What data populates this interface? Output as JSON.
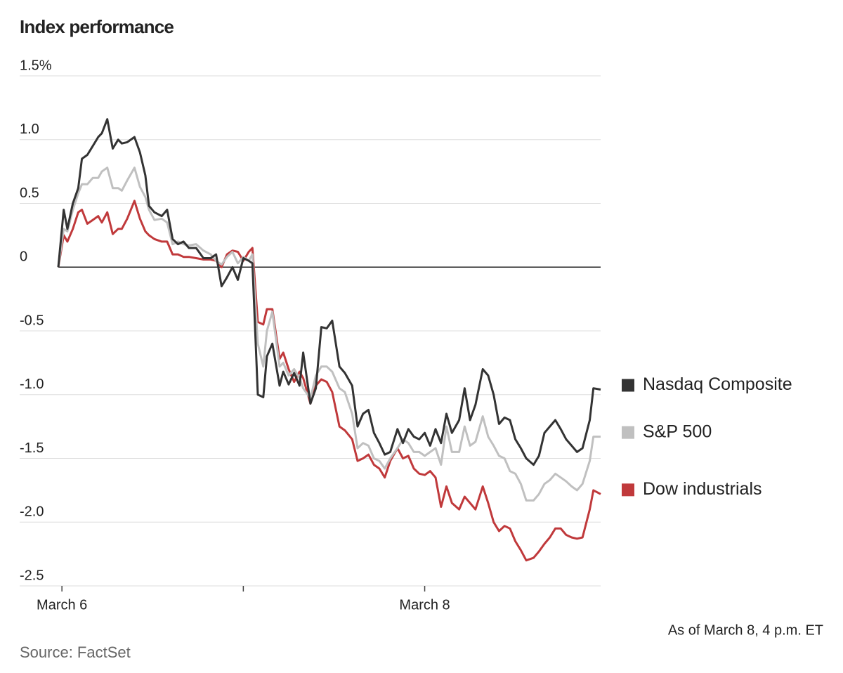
{
  "chart_data": {
    "type": "line",
    "title": "Index performance",
    "x": [
      -0.02,
      0.01,
      0.03,
      0.06,
      0.09,
      0.11,
      0.14,
      0.17,
      0.2,
      0.22,
      0.25,
      0.28,
      0.31,
      0.33,
      0.36,
      0.4,
      0.43,
      0.46,
      0.48,
      0.51,
      0.55,
      0.58,
      0.61,
      0.64,
      0.67,
      0.7,
      0.74,
      0.78,
      0.82,
      0.85,
      0.88,
      0.91,
      0.94,
      0.97,
      1.0,
      1.03,
      1.05,
      1.08,
      1.11,
      1.13,
      1.16,
      1.2,
      1.22,
      1.25,
      1.28,
      1.31,
      1.33,
      1.37,
      1.4,
      1.43,
      1.46,
      1.49,
      1.53,
      1.56,
      1.6,
      1.63,
      1.66,
      1.69,
      1.72,
      1.75,
      1.78,
      1.81,
      1.85,
      1.88,
      1.91,
      1.94,
      1.97,
      2.0,
      2.03,
      2.06,
      2.09,
      2.12,
      2.15,
      2.19,
      2.22,
      2.25,
      2.28,
      2.32,
      2.35,
      2.38,
      2.41,
      2.44,
      2.47,
      2.5,
      2.53,
      2.56,
      2.6,
      2.63,
      2.66,
      2.69,
      2.72,
      2.75,
      2.78,
      2.81,
      2.84,
      2.87,
      2.91,
      2.93,
      2.97
    ],
    "series": [
      {
        "name": "Nasdaq Composite",
        "color": "#333333",
        "values": [
          0,
          0.45,
          0.3,
          0.5,
          0.62,
          0.85,
          0.88,
          0.95,
          1.02,
          1.05,
          1.16,
          0.93,
          1.0,
          0.97,
          0.98,
          1.02,
          0.9,
          0.72,
          0.48,
          0.43,
          0.4,
          0.45,
          0.22,
          0.18,
          0.2,
          0.15,
          0.15,
          0.07,
          0.07,
          0.1,
          -0.15,
          -0.08,
          0.0,
          -0.1,
          0.07,
          0.05,
          0.03,
          -1.0,
          -1.02,
          -0.7,
          -0.6,
          -0.93,
          -0.82,
          -0.92,
          -0.83,
          -0.93,
          -0.67,
          -1.07,
          -0.95,
          -0.47,
          -0.48,
          -0.42,
          -0.78,
          -0.83,
          -0.93,
          -1.25,
          -1.15,
          -1.12,
          -1.3,
          -1.38,
          -1.47,
          -1.45,
          -1.27,
          -1.38,
          -1.27,
          -1.33,
          -1.35,
          -1.3,
          -1.4,
          -1.27,
          -1.38,
          -1.15,
          -1.3,
          -1.2,
          -0.95,
          -1.2,
          -1.08,
          -0.8,
          -0.85,
          -1.0,
          -1.23,
          -1.18,
          -1.2,
          -1.35,
          -1.42,
          -1.5,
          -1.55,
          -1.48,
          -1.3,
          -1.25,
          -1.2,
          -1.27,
          -1.35,
          -1.4,
          -1.45,
          -1.42,
          -1.2,
          -0.95,
          -0.96
        ]
      },
      {
        "name": "S&P 500",
        "color": "#c0c0c0",
        "values": [
          0,
          0.3,
          0.28,
          0.45,
          0.58,
          0.65,
          0.65,
          0.7,
          0.7,
          0.75,
          0.78,
          0.62,
          0.62,
          0.6,
          0.68,
          0.78,
          0.63,
          0.55,
          0.45,
          0.37,
          0.38,
          0.35,
          0.18,
          0.2,
          0.18,
          0.17,
          0.18,
          0.13,
          0.1,
          0.05,
          0.02,
          0.08,
          0.12,
          0.03,
          0.08,
          0.05,
          0.1,
          -0.6,
          -0.78,
          -0.5,
          -0.35,
          -0.78,
          -0.75,
          -0.85,
          -0.8,
          -0.87,
          -0.95,
          -1.03,
          -0.85,
          -0.78,
          -0.78,
          -0.82,
          -0.95,
          -0.98,
          -1.15,
          -1.42,
          -1.38,
          -1.4,
          -1.5,
          -1.52,
          -1.58,
          -1.5,
          -1.42,
          -1.35,
          -1.38,
          -1.45,
          -1.45,
          -1.48,
          -1.45,
          -1.42,
          -1.55,
          -1.25,
          -1.45,
          -1.45,
          -1.25,
          -1.4,
          -1.37,
          -1.17,
          -1.33,
          -1.4,
          -1.48,
          -1.5,
          -1.6,
          -1.62,
          -1.7,
          -1.83,
          -1.83,
          -1.78,
          -1.7,
          -1.67,
          -1.62,
          -1.65,
          -1.68,
          -1.72,
          -1.75,
          -1.7,
          -1.52,
          -1.33,
          -1.33
        ]
      },
      {
        "name": "Dow industrials",
        "color": "#c0393b",
        "values": [
          0,
          0.25,
          0.2,
          0.3,
          0.43,
          0.45,
          0.34,
          0.37,
          0.4,
          0.35,
          0.43,
          0.26,
          0.3,
          0.3,
          0.38,
          0.52,
          0.38,
          0.28,
          0.25,
          0.22,
          0.2,
          0.2,
          0.1,
          0.1,
          0.08,
          0.08,
          0.07,
          0.06,
          0.06,
          0.05,
          0.0,
          0.1,
          0.13,
          0.12,
          0.05,
          0.12,
          0.15,
          -0.43,
          -0.45,
          -0.33,
          -0.33,
          -0.72,
          -0.67,
          -0.8,
          -0.9,
          -0.82,
          -0.87,
          -1.07,
          -0.93,
          -0.88,
          -0.9,
          -0.98,
          -1.25,
          -1.28,
          -1.35,
          -1.52,
          -1.5,
          -1.47,
          -1.55,
          -1.58,
          -1.65,
          -1.52,
          -1.42,
          -1.5,
          -1.48,
          -1.58,
          -1.62,
          -1.63,
          -1.6,
          -1.65,
          -1.88,
          -1.72,
          -1.85,
          -1.9,
          -1.8,
          -1.85,
          -1.9,
          -1.72,
          -1.85,
          -2.0,
          -2.07,
          -2.03,
          -2.05,
          -2.15,
          -2.22,
          -2.3,
          -2.28,
          -2.23,
          -2.17,
          -2.12,
          -2.05,
          -2.05,
          -2.1,
          -2.12,
          -2.13,
          -2.12,
          -1.9,
          -1.75,
          -1.78
        ]
      }
    ],
    "xlim": [
      -0.02,
      2.97
    ],
    "xticks": [
      {
        "value": 0,
        "label": "March 6"
      },
      {
        "value": 1
      },
      {
        "value": 2,
        "label": "March 8"
      }
    ],
    "ylim": [
      -2.5,
      1.5
    ],
    "yticks": [
      {
        "value": 1.5,
        "label": "1.5%"
      },
      {
        "value": 1.0,
        "label": "1.0"
      },
      0.5,
      0,
      -0.5,
      {
        "value": -1.0,
        "label": "-1.0"
      },
      -1.5,
      {
        "value": -2.0,
        "label": "-2.0"
      },
      -2.5
    ],
    "grid": true,
    "legend": "right",
    "note": "As of March 8, 4 p.m. ET",
    "source": "Source: FactSet"
  }
}
